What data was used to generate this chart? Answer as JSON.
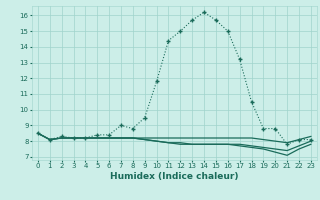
{
  "xlabel": "Humidex (Indice chaleur)",
  "x_ticks": [
    0,
    1,
    2,
    3,
    4,
    5,
    6,
    7,
    8,
    9,
    10,
    11,
    12,
    13,
    14,
    15,
    16,
    17,
    18,
    19,
    20,
    21,
    22,
    23
  ],
  "ylim": [
    6.8,
    16.6
  ],
  "xlim": [
    -0.5,
    23.5
  ],
  "bg_color": "#cceee8",
  "grid_color": "#a0d4cc",
  "line_color": "#1a6b5a",
  "series_main": [
    8.5,
    8.1,
    8.3,
    8.2,
    8.2,
    8.4,
    8.4,
    9.0,
    8.8,
    9.5,
    11.8,
    14.4,
    15.0,
    15.7,
    16.2,
    15.7,
    15.0,
    13.2,
    10.5,
    8.8,
    8.8,
    7.8,
    8.1,
    8.1
  ],
  "series_a": [
    8.5,
    8.1,
    8.2,
    8.2,
    8.2,
    8.2,
    8.2,
    8.2,
    8.2,
    8.2,
    8.2,
    8.2,
    8.2,
    8.2,
    8.2,
    8.2,
    8.2,
    8.2,
    8.2,
    8.1,
    8.0,
    7.9,
    8.1,
    8.3
  ],
  "series_b": [
    8.5,
    8.1,
    8.2,
    8.2,
    8.2,
    8.2,
    8.2,
    8.2,
    8.2,
    8.1,
    8.0,
    7.9,
    7.8,
    7.8,
    7.8,
    7.8,
    7.8,
    7.7,
    7.6,
    7.5,
    7.3,
    7.1,
    7.5,
    7.8
  ],
  "series_c": [
    8.5,
    8.1,
    8.2,
    8.2,
    8.2,
    8.2,
    8.2,
    8.2,
    8.2,
    8.1,
    8.0,
    7.9,
    7.9,
    7.8,
    7.8,
    7.8,
    7.8,
    7.8,
    7.7,
    7.6,
    7.5,
    7.4,
    7.7,
    8.0
  ],
  "yticks": [
    7,
    8,
    9,
    10,
    11,
    12,
    13,
    14,
    15,
    16
  ]
}
